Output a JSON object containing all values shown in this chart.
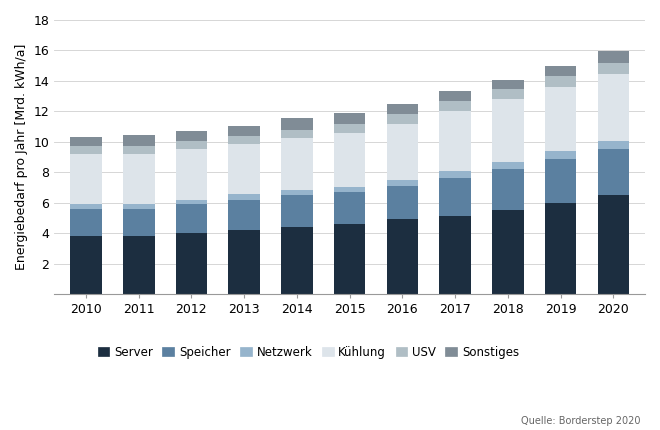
{
  "years": [
    2010,
    2011,
    2012,
    2013,
    2014,
    2015,
    2016,
    2017,
    2018,
    2019,
    2020
  ],
  "categories": [
    "Server",
    "Speicher",
    "Netzwerk",
    "Kühlung",
    "USV",
    "Sonstiges"
  ],
  "colors": [
    "#1c2e40",
    "#5b80a0",
    "#96b4cc",
    "#dde4ea",
    "#b0bec5",
    "#808c96"
  ],
  "data": {
    "Server": [
      3.8,
      3.8,
      4.0,
      4.2,
      4.4,
      4.6,
      4.9,
      5.1,
      5.5,
      6.0,
      6.5
    ],
    "Speicher": [
      1.8,
      1.8,
      1.9,
      2.0,
      2.1,
      2.1,
      2.2,
      2.5,
      2.7,
      2.9,
      3.0
    ],
    "Netzwerk": [
      0.3,
      0.3,
      0.3,
      0.35,
      0.35,
      0.35,
      0.4,
      0.45,
      0.5,
      0.5,
      0.55
    ],
    "Kühlung": [
      3.3,
      3.3,
      3.3,
      3.3,
      3.4,
      3.5,
      3.7,
      4.0,
      4.1,
      4.2,
      4.4
    ],
    "USV": [
      0.5,
      0.5,
      0.55,
      0.55,
      0.55,
      0.6,
      0.6,
      0.6,
      0.65,
      0.7,
      0.75
    ],
    "Sonstiges": [
      0.6,
      0.75,
      0.65,
      0.65,
      0.75,
      0.75,
      0.65,
      0.7,
      0.6,
      0.7,
      0.75
    ]
  },
  "ylabel": "Energiebedarf pro Jahr [Mrd. kWh/a]",
  "ylim": [
    0,
    18
  ],
  "yticks": [
    0,
    2,
    4,
    6,
    8,
    10,
    12,
    14,
    16,
    18
  ],
  "source": "Quelle: Borderstep 2020",
  "bar_width": 0.6,
  "figsize": [
    6.6,
    4.3
  ],
  "dpi": 100
}
